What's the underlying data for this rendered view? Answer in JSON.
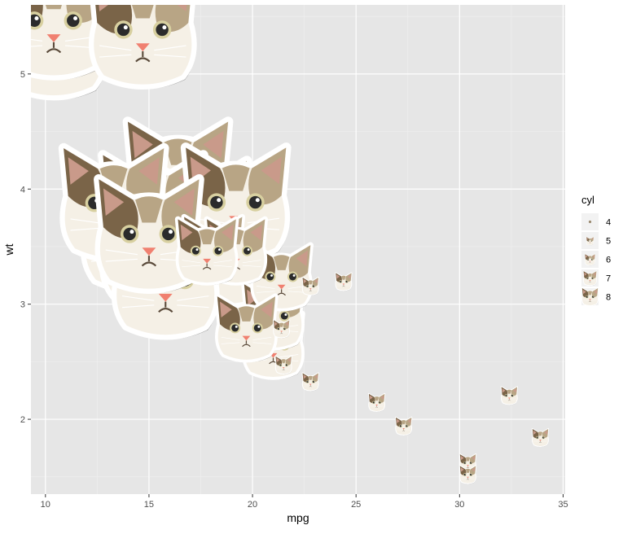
{
  "chart_data": {
    "type": "scatter",
    "title": "",
    "xlabel": "mpg",
    "ylabel": "wt",
    "xlim": [
      9.3,
      35.1
    ],
    "ylim": [
      1.35,
      5.6
    ],
    "x_ticks": [
      10,
      15,
      20,
      25,
      30,
      35
    ],
    "y_ticks": [
      2,
      3,
      4,
      5
    ],
    "x_tick_labels": [
      "10",
      "15",
      "20",
      "25",
      "30",
      "35"
    ],
    "y_tick_labels": [
      "2",
      "3",
      "4",
      "5"
    ],
    "grid": true,
    "marker": "cat-face-icon",
    "legend": {
      "title": "cyl",
      "position": "right",
      "entries": [
        "4",
        "5",
        "6",
        "7",
        "8"
      ],
      "values": [
        4,
        5,
        6,
        7,
        8
      ]
    },
    "points": [
      {
        "x": 21.0,
        "y": 2.62,
        "cyl": 6
      },
      {
        "x": 21.0,
        "y": 2.875,
        "cyl": 6
      },
      {
        "x": 22.8,
        "y": 2.32,
        "cyl": 4
      },
      {
        "x": 21.4,
        "y": 3.215,
        "cyl": 6
      },
      {
        "x": 18.7,
        "y": 3.44,
        "cyl": 8
      },
      {
        "x": 18.1,
        "y": 3.46,
        "cyl": 6
      },
      {
        "x": 14.3,
        "y": 3.57,
        "cyl": 8
      },
      {
        "x": 24.4,
        "y": 3.19,
        "cyl": 4
      },
      {
        "x": 22.8,
        "y": 3.15,
        "cyl": 4
      },
      {
        "x": 19.2,
        "y": 3.44,
        "cyl": 6
      },
      {
        "x": 17.8,
        "y": 3.44,
        "cyl": 6
      },
      {
        "x": 16.4,
        "y": 4.07,
        "cyl": 8
      },
      {
        "x": 17.3,
        "y": 3.73,
        "cyl": 8
      },
      {
        "x": 15.2,
        "y": 3.78,
        "cyl": 8
      },
      {
        "x": 10.4,
        "y": 5.25,
        "cyl": 8
      },
      {
        "x": 10.4,
        "y": 5.424,
        "cyl": 8
      },
      {
        "x": 14.7,
        "y": 5.345,
        "cyl": 8
      },
      {
        "x": 32.4,
        "y": 2.2,
        "cyl": 4
      },
      {
        "x": 30.4,
        "y": 1.615,
        "cyl": 4
      },
      {
        "x": 33.9,
        "y": 1.835,
        "cyl": 4
      },
      {
        "x": 21.5,
        "y": 2.465,
        "cyl": 4
      },
      {
        "x": 15.5,
        "y": 3.52,
        "cyl": 8
      },
      {
        "x": 15.2,
        "y": 3.435,
        "cyl": 8
      },
      {
        "x": 13.3,
        "y": 3.84,
        "cyl": 8
      },
      {
        "x": 19.2,
        "y": 3.845,
        "cyl": 8
      },
      {
        "x": 27.3,
        "y": 1.935,
        "cyl": 4
      },
      {
        "x": 26.0,
        "y": 2.14,
        "cyl": 4
      },
      {
        "x": 30.4,
        "y": 1.513,
        "cyl": 4
      },
      {
        "x": 15.8,
        "y": 3.17,
        "cyl": 8
      },
      {
        "x": 19.7,
        "y": 2.77,
        "cyl": 6
      },
      {
        "x": 15.0,
        "y": 3.57,
        "cyl": 8
      },
      {
        "x": 21.4,
        "y": 2.78,
        "cyl": 4
      }
    ],
    "colors": {
      "panel_bg": "#e6e6e6",
      "grid_major": "#ffffff",
      "grid_minor": "#f0f0f0",
      "fur_light": "#f5f0e6",
      "fur_dark": "#7a6448",
      "fur_mid": "#b8a585",
      "nose": "#f08070",
      "eye": "#2b2b2b",
      "outline": "#ffffff"
    }
  }
}
